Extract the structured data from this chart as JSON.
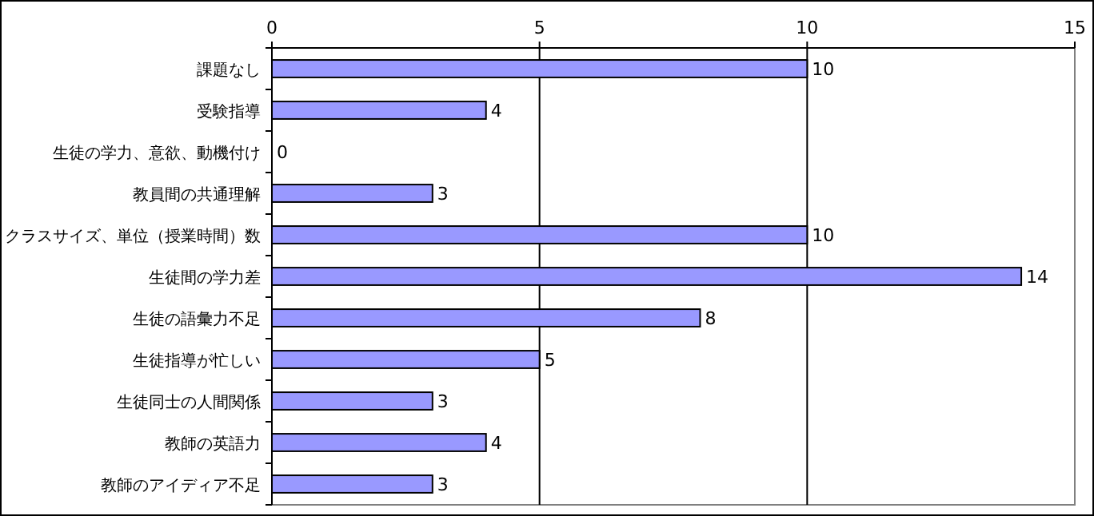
{
  "chart_data": {
    "type": "bar",
    "orientation": "horizontal",
    "categories": [
      "課題なし",
      "受験指導",
      "生徒の学力、意欲、動機付け",
      "教員間の共通理解",
      "クラスサイズ、単位（授業時間）数",
      "生徒間の学力差",
      "生徒の語彙力不足",
      "生徒指導が忙しい",
      "生徒同士の人間関係",
      "教師の英語力",
      "教師のアイディア不足"
    ],
    "values": [
      10,
      4,
      0,
      3,
      10,
      14,
      8,
      5,
      3,
      4,
      3
    ],
    "color": "#9999ff",
    "xlim": [
      0,
      15
    ],
    "xticks": [
      0,
      5,
      10,
      15
    ],
    "grid": "x",
    "data_labels": true
  }
}
